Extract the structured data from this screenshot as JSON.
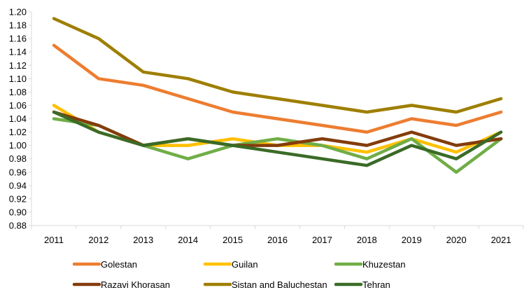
{
  "chart_data": {
    "type": "line",
    "title": "",
    "xlabel": "",
    "ylabel": "",
    "ylim": [
      0.88,
      1.2
    ],
    "ystep": 0.02,
    "grid": false,
    "legend_position": "bottom",
    "categories": [
      "2011",
      "2012",
      "2013",
      "2014",
      "2015",
      "2016",
      "2017",
      "2018",
      "2019",
      "2020",
      "2021"
    ],
    "series": [
      {
        "name": "Golestan",
        "color": "#ED7D31",
        "values": [
          1.15,
          1.1,
          1.09,
          1.07,
          1.05,
          1.04,
          1.03,
          1.02,
          1.04,
          1.03,
          1.05
        ]
      },
      {
        "name": "Guilan",
        "color": "#FFC000",
        "values": [
          1.06,
          1.02,
          1.0,
          1.0,
          1.01,
          1.0,
          1.0,
          0.99,
          1.01,
          0.99,
          1.02
        ]
      },
      {
        "name": "Khuzestan",
        "color": "#70AD47",
        "values": [
          1.04,
          1.03,
          1.0,
          0.98,
          1.0,
          1.01,
          1.0,
          0.98,
          1.01,
          0.96,
          1.01
        ]
      },
      {
        "name": "Razavi Khorasan",
        "color": "#843C0C",
        "values": [
          1.05,
          1.03,
          1.0,
          1.01,
          1.0,
          1.0,
          1.01,
          1.0,
          1.02,
          1.0,
          1.01
        ]
      },
      {
        "name": "Sistan and Baluchestan",
        "color": "#9E7F00",
        "values": [
          1.19,
          1.16,
          1.11,
          1.1,
          1.08,
          1.07,
          1.06,
          1.05,
          1.06,
          1.05,
          1.07
        ]
      },
      {
        "name": "Tehran",
        "color": "#3A6B27",
        "values": [
          1.05,
          1.02,
          1.0,
          1.01,
          1.0,
          0.99,
          0.98,
          0.97,
          1.0,
          0.98,
          1.02
        ]
      }
    ]
  }
}
